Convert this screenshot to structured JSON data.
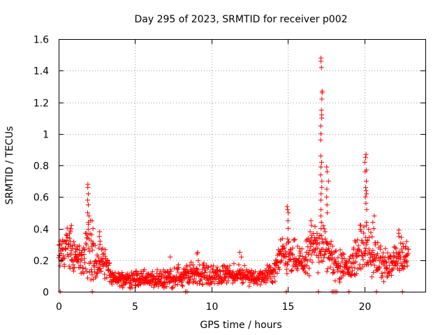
{
  "chart_data": {
    "type": "scatter",
    "title": "Day 295 of 2023, SRMTID for receiver p002",
    "xlabel": "GPS time / hours",
    "ylabel": "SRMTID / TECUs",
    "xlim": [
      0,
      24
    ],
    "ylim": [
      0,
      1.6
    ],
    "x_ticks": [
      0,
      5,
      10,
      15,
      20
    ],
    "x_tick_labels": [
      "0",
      "5",
      "10",
      "15",
      "20"
    ],
    "y_ticks": [
      0,
      0.2,
      0.4,
      0.6,
      0.8,
      1.0,
      1.2,
      1.4,
      1.6
    ],
    "y_tick_labels": [
      "0",
      "0.2",
      "0.4",
      "0.6",
      "0.8",
      "1",
      "1.2",
      "1.4",
      "1.6"
    ],
    "grid": true,
    "marker": "+",
    "series": [
      {
        "name": "SRMTID",
        "color": "#ff0000",
        "profile_note": "sampled representation of the dense point cloud",
        "anchors": [
          {
            "x": 0.0,
            "base": 0.22,
            "spread": 0.07
          },
          {
            "x": 0.5,
            "base": 0.28,
            "spread": 0.1
          },
          {
            "x": 1.0,
            "base": 0.25,
            "spread": 0.1
          },
          {
            "x": 1.5,
            "base": 0.18,
            "spread": 0.06
          },
          {
            "x": 2.0,
            "base": 0.3,
            "spread": 0.15
          },
          {
            "x": 2.5,
            "base": 0.16,
            "spread": 0.07
          },
          {
            "x": 3.0,
            "base": 0.2,
            "spread": 0.09
          },
          {
            "x": 3.5,
            "base": 0.08,
            "spread": 0.03
          },
          {
            "x": 5.0,
            "base": 0.08,
            "spread": 0.04
          },
          {
            "x": 7.0,
            "base": 0.08,
            "spread": 0.04
          },
          {
            "x": 9.0,
            "base": 0.12,
            "spread": 0.06
          },
          {
            "x": 10.0,
            "base": 0.1,
            "spread": 0.05
          },
          {
            "x": 12.0,
            "base": 0.11,
            "spread": 0.05
          },
          {
            "x": 13.0,
            "base": 0.08,
            "spread": 0.03
          },
          {
            "x": 14.0,
            "base": 0.12,
            "spread": 0.05
          },
          {
            "x": 14.8,
            "base": 0.25,
            "spread": 0.1
          },
          {
            "x": 15.2,
            "base": 0.22,
            "spread": 0.1
          },
          {
            "x": 16.0,
            "base": 0.18,
            "spread": 0.08
          },
          {
            "x": 16.8,
            "base": 0.3,
            "spread": 0.12
          },
          {
            "x": 17.5,
            "base": 0.28,
            "spread": 0.12
          },
          {
            "x": 18.0,
            "base": 0.18,
            "spread": 0.08
          },
          {
            "x": 19.0,
            "base": 0.15,
            "spread": 0.06
          },
          {
            "x": 19.8,
            "base": 0.28,
            "spread": 0.12
          },
          {
            "x": 20.5,
            "base": 0.22,
            "spread": 0.1
          },
          {
            "x": 21.5,
            "base": 0.16,
            "spread": 0.07
          },
          {
            "x": 22.5,
            "base": 0.22,
            "spread": 0.09
          },
          {
            "x": 22.9,
            "base": 0.25,
            "spread": 0.08
          }
        ],
        "peaks": [
          {
            "x": 0.8,
            "values": [
              0.42,
              0.4,
              0.38,
              0.39
            ]
          },
          {
            "x": 1.95,
            "values": [
              0.68,
              0.66,
              0.62,
              0.58,
              0.55,
              0.5,
              0.48,
              0.44
            ]
          },
          {
            "x": 2.2,
            "values": [
              0.45,
              0.4,
              0.36
            ]
          },
          {
            "x": 2.7,
            "values": [
              0.38,
              0.35,
              0.32,
              0.3
            ]
          },
          {
            "x": 9.1,
            "values": [
              0.25,
              0.24
            ]
          },
          {
            "x": 7.3,
            "values": [
              0.22
            ]
          },
          {
            "x": 11.9,
            "values": [
              0.25,
              0.22
            ]
          },
          {
            "x": 15.0,
            "values": [
              0.54,
              0.52,
              0.5,
              0.45,
              0.4
            ]
          },
          {
            "x": 16.5,
            "values": [
              0.45,
              0.42,
              0.38
            ]
          },
          {
            "x": 17.2,
            "values": [
              1.48,
              1.46,
              1.42,
              1.27,
              1.26,
              1.22,
              1.15,
              1.12,
              1.1,
              1.05,
              1.0,
              0.96,
              0.86,
              0.82,
              0.79,
              0.74,
              0.7,
              0.66,
              0.62,
              0.58,
              0.52,
              0.48,
              0.44,
              0.4
            ]
          },
          {
            "x": 17.6,
            "values": [
              0.79,
              0.76,
              0.7,
              0.65,
              0.6,
              0.55,
              0.5
            ]
          },
          {
            "x": 20.1,
            "values": [
              0.87,
              0.85,
              0.82,
              0.77,
              0.76,
              0.7,
              0.66,
              0.64,
              0.62,
              0.6,
              0.56,
              0.52,
              0.44,
              0.42
            ]
          },
          {
            "x": 20.6,
            "values": [
              0.48,
              0.44,
              0.4
            ]
          },
          {
            "x": 22.3,
            "values": [
              0.39,
              0.37,
              0.35
            ]
          }
        ],
        "zero_points": [
          0.1,
          2.2,
          8.3,
          8.4,
          14.9,
          17.0,
          17.9,
          18.0,
          18.1,
          18.2,
          19.0,
          20.8,
          22.5
        ]
      }
    ]
  }
}
